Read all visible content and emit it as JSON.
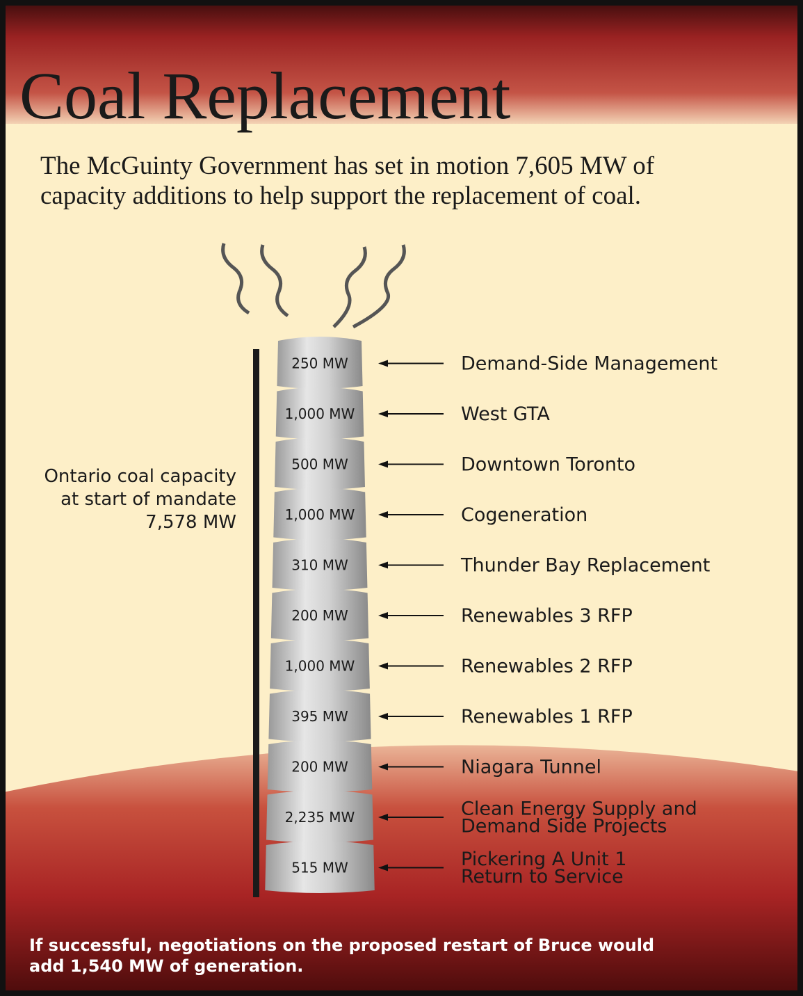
{
  "title": "Coal Replacement",
  "intro": [
    "The McGuinty Government has set in motion 7,605 MW of",
    "capacity additions to help support the replacement of coal."
  ],
  "left_note": [
    "Ontario coal capacity",
    "at start of mandate",
    "7,578 MW"
  ],
  "segments": [
    {
      "capacity": "250 MW",
      "project": [
        "Demand-Side Management"
      ]
    },
    {
      "capacity": "1,000 MW",
      "project": [
        "West GTA"
      ]
    },
    {
      "capacity": "500 MW",
      "project": [
        "Downtown Toronto"
      ]
    },
    {
      "capacity": "1,000 MW",
      "project": [
        "Cogeneration"
      ]
    },
    {
      "capacity": "310 MW",
      "project": [
        "Thunder Bay Replacement"
      ]
    },
    {
      "capacity": "200 MW",
      "project": [
        "Renewables 3 RFP"
      ]
    },
    {
      "capacity": "1,000 MW",
      "project": [
        "Renewables 2 RFP"
      ]
    },
    {
      "capacity": "395 MW",
      "project": [
        "Renewables 1 RFP"
      ]
    },
    {
      "capacity": "200 MW",
      "project": [
        "Niagara Tunnel"
      ]
    },
    {
      "capacity": "2,235 MW",
      "project": [
        "Clean Energy Supply and",
        "Demand Side Projects"
      ]
    },
    {
      "capacity": "515 MW",
      "project": [
        "Pickering A Unit 1",
        "Return to Service"
      ]
    }
  ],
  "footer": [
    "If successful, negotiations on the proposed restart of Bruce would",
    "add 1,540 MW of generation."
  ]
}
